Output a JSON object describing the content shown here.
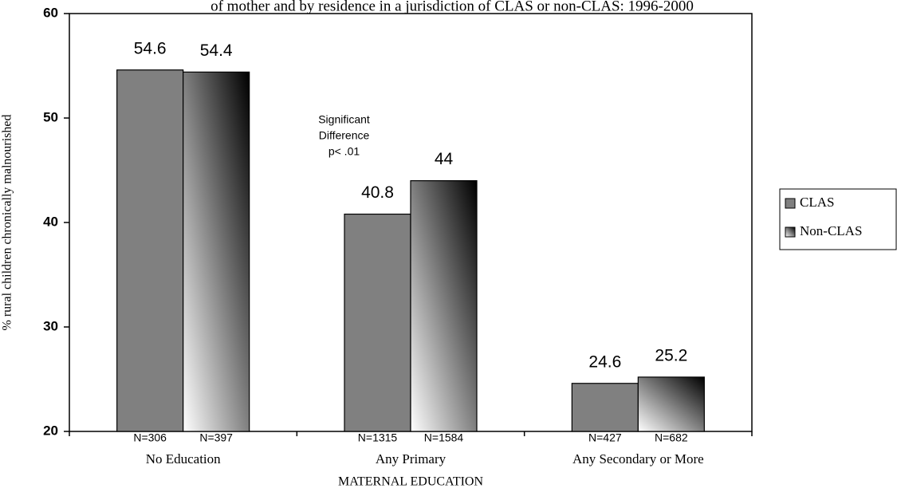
{
  "chart_data": {
    "type": "bar",
    "subtitle": "of mother and by residence in a jurisdiction of CLAS or non-CLAS:  1996-2000",
    "y_label": "% rural children chronically malnourished",
    "x_label": "MATERNAL EDUCATION",
    "categories": [
      "No Education",
      "Any Primary",
      "Any Secondary or More"
    ],
    "series": [
      {
        "name": "CLAS",
        "color": "#808080",
        "values": [
          54.6,
          40.8,
          24.6
        ],
        "sample_sizes": [
          "N=306",
          "N=1315",
          "N=427"
        ]
      },
      {
        "name": "Non-CLAS",
        "gradient": [
          "#ffffff",
          "#000000"
        ],
        "values": [
          54.4,
          44,
          25.2
        ],
        "sample_sizes": [
          "N=397",
          "N=1584",
          "N=682"
        ]
      }
    ],
    "annotation": [
      "Significant",
      "Difference",
      "p< .01"
    ],
    "ylim": [
      20,
      60
    ],
    "yticks": [
      20,
      30,
      40,
      50,
      60
    ],
    "grid": false,
    "legend": "right"
  }
}
